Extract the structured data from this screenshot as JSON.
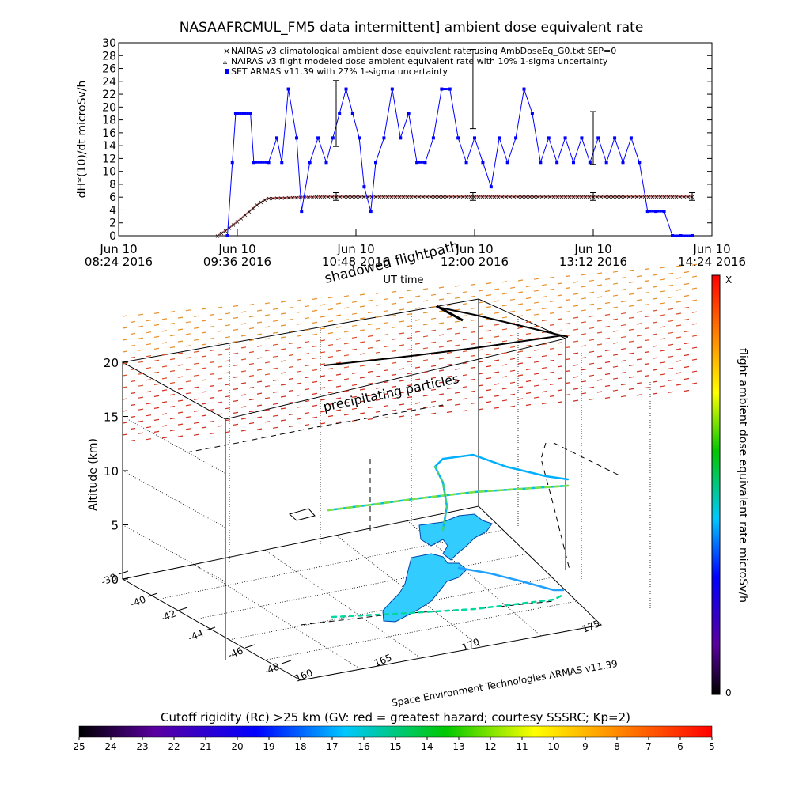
{
  "chart_data": [
    {
      "type": "line",
      "title": "NASAAFRCMUL_FM5 data intermittent] ambient dose equivalent rate",
      "xlabel": "UT time",
      "ylabel": "dH*(10)/dt microSv/h",
      "ylim": [
        0,
        30
      ],
      "yticks": [
        0,
        2,
        4,
        6,
        8,
        10,
        12,
        14,
        16,
        18,
        20,
        22,
        24,
        26,
        28,
        30
      ],
      "xlim": [
        "2016-06-10T08:24",
        "2016-06-10T14:24"
      ],
      "xticks": [
        {
          "t": "2016-06-10T08:24",
          "line1": "Jun 10",
          "line2": "08:24 2016"
        },
        {
          "t": "2016-06-10T09:36",
          "line1": "Jun 10",
          "line2": "09:36 2016"
        },
        {
          "t": "2016-06-10T10:48",
          "line1": "Jun 10",
          "line2": "10:48 2016"
        },
        {
          "t": "2016-06-10T12:00",
          "line1": "Jun 10",
          "line2": "12:00 2016"
        },
        {
          "t": "2016-06-10T13:12",
          "line1": "Jun 10",
          "line2": "13:12 2016"
        },
        {
          "t": "2016-06-10T14:24",
          "line1": "Jun 10",
          "line2": "14:24 2016"
        }
      ],
      "legend_position": "top-right",
      "series": [
        {
          "name": "NAIRAS v3 climatological ambient dose equivalent rate using AmbDoseEq_G0.txt SEP=0",
          "color": "#c06060",
          "marker": "x",
          "x": [
            "2016-06-10T09:24",
            "2016-06-10T09:30",
            "2016-06-10T09:36",
            "2016-06-10T09:42",
            "2016-06-10T09:48",
            "2016-06-10T09:54",
            "2016-06-10T10:00",
            "2016-06-10T10:15",
            "2016-06-10T10:30",
            "2016-06-10T11:00",
            "2016-06-10T11:30",
            "2016-06-10T12:00",
            "2016-06-10T12:30",
            "2016-06-10T13:00",
            "2016-06-10T13:30",
            "2016-06-10T14:00",
            "2016-06-10T14:12"
          ],
          "values": [
            0,
            1,
            2.2,
            3.5,
            4.8,
            5.8,
            5.9,
            6.0,
            6.1,
            6.1,
            6.1,
            6.1,
            6.1,
            6.1,
            6.1,
            6.1,
            6.1
          ]
        },
        {
          "name": "NAIRAS v3 flight modeled dose ambient equivalent rate with 10% 1-sigma uncertainty",
          "color": "#000000",
          "marker": "errorbar",
          "x": [
            "2016-06-10T10:36",
            "2016-06-10T11:59",
            "2016-06-10T13:12",
            "2016-06-10T14:12"
          ],
          "values": [
            6.1,
            6.1,
            6.1,
            6.1
          ],
          "err": [
            0.6,
            0.6,
            0.6,
            0.6
          ]
        },
        {
          "name": "SET ARMAS v11.39 with 27% 1-sigma uncertainty",
          "color": "#0000ff",
          "marker": "square",
          "x": [
            "2016-06-10T09:30",
            "2016-06-10T09:33",
            "2016-06-10T09:35",
            "2016-06-10T09:44",
            "2016-06-10T09:46",
            "2016-06-10T09:55",
            "2016-06-10T10:00",
            "2016-06-10T10:03",
            "2016-06-10T10:07",
            "2016-06-10T10:12",
            "2016-06-10T10:15",
            "2016-06-10T10:20",
            "2016-06-10T10:25",
            "2016-06-10T10:30",
            "2016-06-10T10:34",
            "2016-06-10T10:38",
            "2016-06-10T10:42",
            "2016-06-10T10:46",
            "2016-06-10T10:50",
            "2016-06-10T10:53",
            "2016-06-10T10:57",
            "2016-06-10T11:00",
            "2016-06-10T11:05",
            "2016-06-10T11:10",
            "2016-06-10T11:15",
            "2016-06-10T11:20",
            "2016-06-10T11:25",
            "2016-06-10T11:30",
            "2016-06-10T11:35",
            "2016-06-10T11:40",
            "2016-06-10T11:45",
            "2016-06-10T11:50",
            "2016-06-10T11:55",
            "2016-06-10T12:00",
            "2016-06-10T12:05",
            "2016-06-10T12:10",
            "2016-06-10T12:15",
            "2016-06-10T12:20",
            "2016-06-10T12:25",
            "2016-06-10T12:30",
            "2016-06-10T12:35",
            "2016-06-10T12:40",
            "2016-06-10T12:45",
            "2016-06-10T12:50",
            "2016-06-10T12:55",
            "2016-06-10T13:00",
            "2016-06-10T13:05",
            "2016-06-10T13:10",
            "2016-06-10T13:15",
            "2016-06-10T13:20",
            "2016-06-10T13:25",
            "2016-06-10T13:30",
            "2016-06-10T13:35",
            "2016-06-10T13:40",
            "2016-06-10T13:45",
            "2016-06-10T13:50",
            "2016-06-10T13:55",
            "2016-06-10T14:00",
            "2016-06-10T14:05",
            "2016-06-10T14:12"
          ],
          "values": [
            0,
            11.4,
            19,
            19,
            11.4,
            11.4,
            15.2,
            11.4,
            22.8,
            15.2,
            3.8,
            11.4,
            15.2,
            11.4,
            15.2,
            19,
            22.8,
            19,
            15.2,
            7.6,
            3.8,
            11.4,
            15.2,
            22.8,
            15.2,
            19,
            11.4,
            11.4,
            15.2,
            22.8,
            22.8,
            15.2,
            11.4,
            15.2,
            11.4,
            7.6,
            15.2,
            11.4,
            15.2,
            22.8,
            19,
            11.4,
            15.2,
            11.4,
            15.2,
            11.4,
            15.2,
            11.4,
            15.2,
            11.4,
            15.2,
            11.4,
            15.2,
            11.4,
            3.8,
            3.8,
            3.8,
            0,
            0,
            0
          ]
        }
      ]
    },
    {
      "type": "scatter",
      "title": "",
      "zlabel": "Altitude (km)",
      "zticks": [
        0,
        5,
        10,
        15,
        20
      ],
      "yticks": [
        "-38",
        "-40",
        "-42",
        "-44",
        "-46",
        "-48"
      ],
      "xticks": [
        "160",
        "165",
        "170",
        "175"
      ],
      "annotations": [
        "shadowed flightpath",
        "precipitating particles"
      ],
      "credit": "Space Environment Technologies ARMAS v11.39",
      "colorbar": {
        "label": "flight ambient dose equivalent rate microSv/h",
        "min_label": "0",
        "max_label": "X"
      },
      "cutoff_bar": {
        "title": "Cutoff rigidity (Rc) >25 km (GV: red = greatest hazard; courtesy SSSRC; Kp=2)",
        "ticks": [
          "25",
          "24",
          "23",
          "22",
          "21",
          "20",
          "19",
          "18",
          "17",
          "16",
          "15",
          "14",
          "13",
          "12",
          "11",
          "10",
          "9",
          "8",
          "7",
          "6",
          "5"
        ]
      }
    }
  ]
}
